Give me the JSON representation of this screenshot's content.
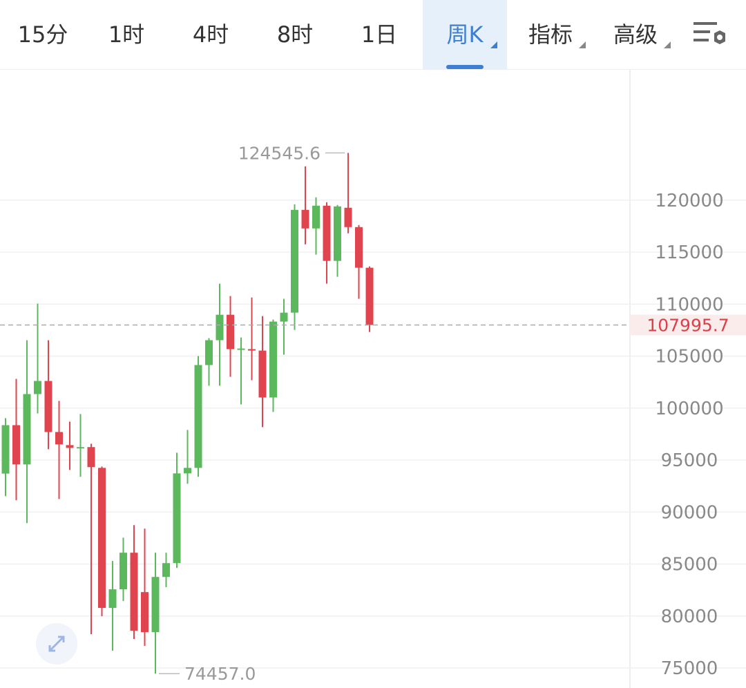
{
  "toolbar": {
    "tabs": [
      "15分",
      "1时",
      "4时",
      "8时",
      "1日",
      "周K",
      "指标",
      "高级"
    ]
  },
  "chart_data": {
    "type": "candlestick",
    "up_color": "#5cb85c",
    "down_color": "#e0454f",
    "open": [
      93700,
      98360,
      94580,
      101350,
      102610,
      97700,
      96440,
      96170,
      96250,
      94250,
      80780,
      82570,
      86090,
      82300,
      78450,
      83760,
      85090,
      93720,
      94250,
      104140,
      106530,
      108980,
      105670,
      105670,
      105530,
      101020,
      108320,
      109180,
      119070,
      117280,
      119470,
      114160,
      119270,
      117410,
      113500
    ],
    "high": [
      99030,
      102810,
      106530,
      110050,
      106530,
      100690,
      98700,
      99430,
      96570,
      94380,
      85290,
      87540,
      88740,
      88410,
      86090,
      86090,
      95710,
      97900,
      105000,
      106730,
      111970,
      110780,
      106790,
      110640,
      108850,
      108520,
      110510,
      119600,
      123250,
      120270,
      119800,
      119540,
      124545.6,
      117610,
      113630
    ],
    "low": [
      91530,
      91130,
      88940,
      99490,
      96040,
      91260,
      94050,
      93390,
      78250,
      79980,
      76660,
      81440,
      77790,
      77130,
      74457,
      82770,
      84630,
      92720,
      93390,
      102150,
      102150,
      103010,
      100360,
      102680,
      98170,
      99630,
      105140,
      107520,
      115750,
      114760,
      111970,
      112630,
      116810,
      110510,
      107320
    ],
    "close": [
      98360,
      94580,
      101350,
      102610,
      97700,
      96510,
      96170,
      96250,
      94320,
      80780,
      82570,
      86090,
      78590,
      78450,
      83760,
      85090,
      93720,
      94250,
      104140,
      106530,
      108980,
      105670,
      105730,
      105530,
      101020,
      108320,
      109180,
      119070,
      117280,
      119470,
      114160,
      119400,
      117410,
      113500,
      107995.7
    ],
    "ylim": [
      73076,
      132544
    ],
    "yticks": [
      75000,
      80000,
      85000,
      90000,
      95000,
      100000,
      105000,
      110000,
      115000,
      120000
    ],
    "grid": true,
    "last_price": 107995.7,
    "high_annotation": 124545.6,
    "low_annotation": {
      "value": 74457,
      "label": "74457.0"
    }
  }
}
